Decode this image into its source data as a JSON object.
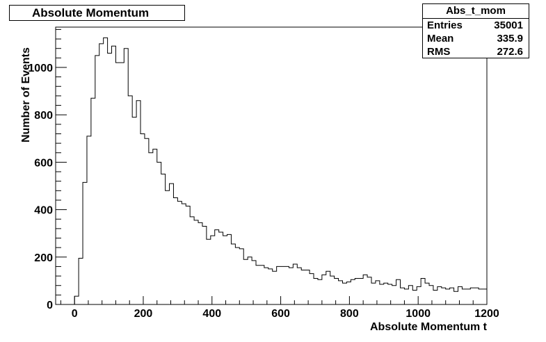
{
  "chart_data": {
    "type": "bar",
    "title": "Absolute Momentum",
    "xlabel": "Absolute Momentum t",
    "ylabel": "Number of Events",
    "xlim": [
      -55,
      1200
    ],
    "ylim": [
      0,
      1170
    ],
    "bin_width": 12,
    "x_start": 0,
    "xticks": [
      0,
      200,
      400,
      600,
      800,
      1000,
      1200
    ],
    "yticks": [
      0,
      200,
      400,
      600,
      800,
      1000
    ],
    "values": [
      35,
      195,
      515,
      710,
      870,
      1050,
      1100,
      1125,
      1060,
      1090,
      1020,
      1020,
      1080,
      880,
      790,
      860,
      720,
      700,
      640,
      655,
      600,
      550,
      480,
      510,
      450,
      435,
      425,
      415,
      370,
      355,
      345,
      330,
      275,
      290,
      315,
      305,
      290,
      295,
      255,
      240,
      235,
      190,
      200,
      185,
      165,
      165,
      155,
      150,
      140,
      160,
      160,
      160,
      155,
      170,
      155,
      145,
      145,
      130,
      110,
      105,
      125,
      140,
      120,
      110,
      100,
      90,
      95,
      105,
      110,
      110,
      125,
      115,
      90,
      100,
      85,
      90,
      85,
      80,
      105,
      70,
      65,
      80,
      60,
      75,
      110,
      90,
      80,
      60,
      75,
      70,
      65,
      70,
      55,
      75,
      65,
      65,
      70,
      70,
      65,
      65
    ]
  },
  "stats": {
    "name": "Abs_t_mom",
    "rows": [
      {
        "label": "Entries",
        "value": "35001"
      },
      {
        "label": "Mean",
        "value": "335.9"
      },
      {
        "label": "RMS",
        "value": "272.6"
      }
    ]
  }
}
